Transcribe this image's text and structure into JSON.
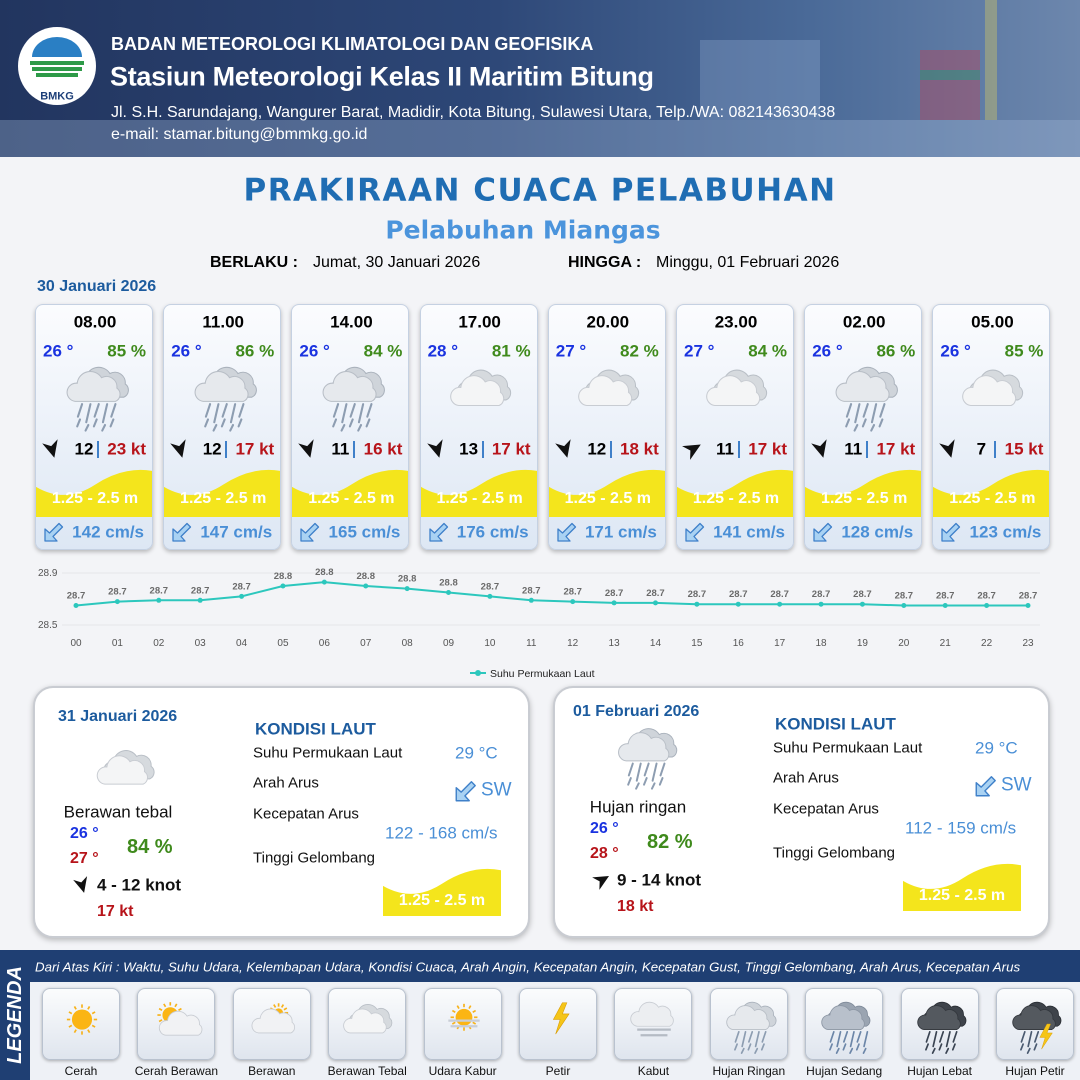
{
  "header": {
    "logo": "BMKG",
    "agency": "BADAN METEOROLOGI KLIMATOLOGI DAN GEOFISIKA",
    "station": "Stasiun Meteorologi Kelas II Maritim Bitung",
    "address": "Jl. S.H. Sarundajang, Wangurer Barat, Madidir, Kota Bitung, Sulawesi Utara, Telp./WA: 082143630438",
    "email": "e-mail: stamar.bitung@bmmkg.go.id"
  },
  "title": "PRAKIRAAN CUACA PELABUHAN",
  "subtitle": "Pelabuhan Miangas",
  "validity": {
    "from_label": "BERLAKU :",
    "from": "Jumat, 30 Januari 2026",
    "to_label": "HINGGA :",
    "to": "Minggu, 01 Februari 2026"
  },
  "day1_date": "30 Januari 2026",
  "cards": [
    {
      "time": "08.00",
      "temp": "26 °",
      "humidity": "85 %",
      "wind": "12",
      "gust": "23 kt",
      "wave": "1.25 - 2.5 m",
      "current": "142 cm/s"
    },
    {
      "time": "11.00",
      "temp": "26 °",
      "humidity": "86 %",
      "wind": "12",
      "gust": "17 kt",
      "wave": "1.25 - 2.5 m",
      "current": "147 cm/s"
    },
    {
      "time": "14.00",
      "temp": "26 °",
      "humidity": "84 %",
      "wind": "11",
      "gust": "16 kt",
      "wave": "1.25 - 2.5 m",
      "current": "165 cm/s"
    },
    {
      "time": "17.00",
      "temp": "28 °",
      "humidity": "81 %",
      "wind": "13",
      "gust": "17 kt",
      "wave": "1.25 - 2.5 m",
      "current": "176 cm/s"
    },
    {
      "time": "20.00",
      "temp": "27 °",
      "humidity": "82 %",
      "wind": "12",
      "gust": "18 kt",
      "wave": "1.25 - 2.5 m",
      "current": "171 cm/s"
    },
    {
      "time": "23.00",
      "temp": "27 °",
      "humidity": "84 %",
      "wind": "11",
      "gust": "17 kt",
      "wave": "1.25 - 2.5 m",
      "current": "141 cm/s"
    },
    {
      "time": "02.00",
      "temp": "26 °",
      "humidity": "86 %",
      "wind": "11",
      "gust": "17 kt",
      "wave": "1.25 - 2.5 m",
      "current": "128 cm/s"
    },
    {
      "time": "05.00",
      "temp": "26 °",
      "humidity": "85 %",
      "wind": "7",
      "gust": "15 kt",
      "wave": "1.25 - 2.5 m",
      "current": "123 cm/s"
    }
  ],
  "chart_data": {
    "type": "line",
    "categories": [
      "00",
      "01",
      "02",
      "03",
      "04",
      "05",
      "06",
      "07",
      "08",
      "09",
      "10",
      "11",
      "12",
      "13",
      "14",
      "15",
      "16",
      "17",
      "18",
      "19",
      "20",
      "21",
      "22",
      "23"
    ],
    "series": [
      {
        "name": "Suhu Permukaan Laut",
        "color": "#2cc7bd",
        "values": [
          28.65,
          28.68,
          28.69,
          28.69,
          28.72,
          28.8,
          28.83,
          28.8,
          28.78,
          28.75,
          28.72,
          28.69,
          28.68,
          28.67,
          28.67,
          28.66,
          28.66,
          28.66,
          28.66,
          28.66,
          28.65,
          28.65,
          28.65,
          28.65
        ],
        "value_labels": [
          "28.7",
          "28.7",
          "28.7",
          "28.7",
          "28.7",
          "28.8",
          "28.8",
          "28.8",
          "28.8",
          "28.8",
          "28.7",
          "28.7",
          "28.7",
          "28.7",
          "28.7",
          "28.7",
          "28.7",
          "28.7",
          "28.7",
          "28.7",
          "28.7",
          "28.7",
          "28.7",
          "28.7"
        ]
      }
    ],
    "ylim": [
      28.5,
      28.9
    ],
    "yticks": [
      28.5,
      28.9
    ]
  },
  "days": [
    {
      "date": "31 Januari 2026",
      "condition": "Berawan tebal",
      "temp_min": "26 °",
      "temp_max": "27 °",
      "humidity": "84 %",
      "wind": "4  - 12 knot",
      "gust": "17 kt",
      "sea_heading": "KONDISI LAUT",
      "sea_labels": [
        "Suhu Permukaan Laut",
        "Arah Arus",
        "Kecepatan Arus",
        "Tinggi Gelombang"
      ],
      "sst": "29 °C",
      "current_dir": "SW",
      "current_speed": "122 - 168 cm/s",
      "wave": "1.25 - 2.5 m"
    },
    {
      "date": "01 Februari 2026",
      "condition": "Hujan ringan",
      "temp_min": "26 °",
      "temp_max": "28 °",
      "humidity": "82 %",
      "wind": "9  - 14 knot",
      "gust": "18 kt",
      "sea_heading": "KONDISI LAUT",
      "sea_labels": [
        "Suhu Permukaan Laut",
        "Arah Arus",
        "Kecepatan Arus",
        "Tinggi Gelombang"
      ],
      "sst": "29 °C",
      "current_dir": "SW",
      "current_speed": "112 - 159 cm/s",
      "wave": "1.25 - 2.5 m"
    }
  ],
  "legend": {
    "title": "LEGENDA",
    "description": "Dari Atas Kiri : Waktu, Suhu Udara, Kelembapan Udara, Kondisi Cuaca, Arah Angin, Kecepatan Angin, Kecepatan Gust, Tinggi Gelombang, Arah Arus, Kecepatan Arus",
    "items": [
      "Cerah",
      "Cerah Berawan",
      "Berawan",
      "Berawan Tebal",
      "Udara Kabur",
      "Petir",
      "Kabut",
      "Hujan Ringan",
      "Hujan Sedang",
      "Hujan Lebat",
      "Hujan Petir"
    ]
  }
}
